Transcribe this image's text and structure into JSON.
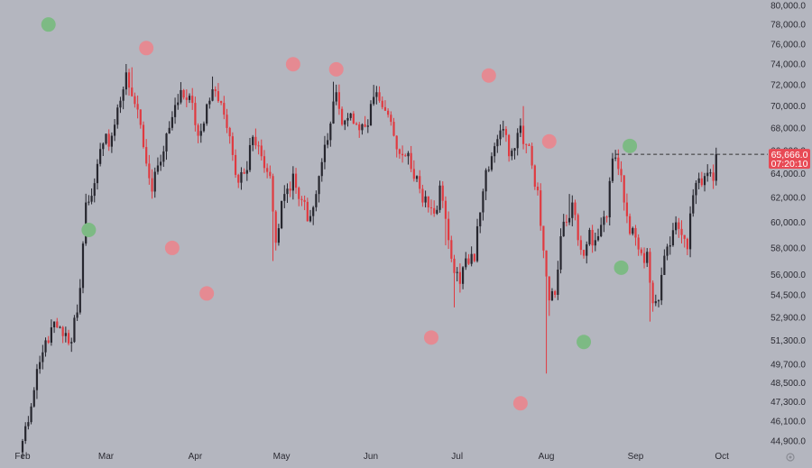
{
  "chart_data": {
    "type": "candlestick",
    "background": "#b4b6bf",
    "colors": {
      "up": "#26262e",
      "down": "#e03a40",
      "marker_bullish": "#7dba84",
      "marker_bearish": "#e58a92",
      "price_tag": "#e84a55",
      "current_line": "#333333"
    },
    "x_tick_labels": [
      {
        "label": "Feb",
        "day": 0
      },
      {
        "label": "Mar",
        "day": 29
      },
      {
        "label": "Apr",
        "day": 60
      },
      {
        "label": "May",
        "day": 90
      },
      {
        "label": "Jun",
        "day": 121
      },
      {
        "label": "Jul",
        "day": 151
      },
      {
        "label": "Aug",
        "day": 182
      },
      {
        "label": "Sep",
        "day": 213
      },
      {
        "label": "Oct",
        "day": 243
      }
    ],
    "y_axis_labels": [
      "80,000.0",
      "78,000.0",
      "76,000.0",
      "74,000.0",
      "72,000.0",
      "70,000.0",
      "68,000.0",
      "66,000.0",
      "64,000.0",
      "62,000.0",
      "60,000.0",
      "58,000.0",
      "56,000.0",
      "54,500.0",
      "52,900.0",
      "51,300.0",
      "49,700.0",
      "48,500.0",
      "47,300.0",
      "46,100.0",
      "44,900.0"
    ],
    "y_scale": "log",
    "y_range": [
      44000,
      80600
    ],
    "current_price": {
      "value": 65666.0,
      "label": "65,666.0",
      "countdown": "07:20:10",
      "line_start_day": 206
    },
    "candle_keypoints": [
      [
        0,
        44900
      ],
      [
        3,
        47000
      ],
      [
        7,
        50500
      ],
      [
        10,
        52200
      ],
      [
        14,
        51600
      ],
      [
        17,
        51200
      ],
      [
        20,
        55000
      ],
      [
        22,
        61600
      ],
      [
        25,
        63200
      ],
      [
        28,
        66600
      ],
      [
        31,
        67300
      ],
      [
        34,
        70500
      ],
      [
        36,
        73200
      ],
      [
        39,
        70200
      ],
      [
        42,
        66300
      ],
      [
        45,
        62500
      ],
      [
        47,
        64700
      ],
      [
        50,
        67500
      ],
      [
        53,
        70100
      ],
      [
        56,
        70800
      ],
      [
        59,
        70300
      ],
      [
        61,
        67300
      ],
      [
        63,
        68400
      ],
      [
        65,
        70500
      ],
      [
        67,
        71400
      ],
      [
        69,
        70300
      ],
      [
        71,
        68000
      ],
      [
        74,
        63900
      ],
      [
        77,
        64000
      ],
      [
        80,
        67200
      ],
      [
        83,
        65500
      ],
      [
        86,
        63800
      ],
      [
        88,
        58400
      ],
      [
        91,
        62300
      ],
      [
        94,
        64000
      ],
      [
        97,
        61800
      ],
      [
        100,
        60500
      ],
      [
        103,
        63800
      ],
      [
        105,
        66500
      ],
      [
        107,
        68400
      ],
      [
        109,
        71300
      ],
      [
        111,
        68300
      ],
      [
        113,
        68900
      ],
      [
        115,
        68400
      ],
      [
        117,
        67800
      ],
      [
        119,
        68100
      ],
      [
        121,
        70200
      ],
      [
        123,
        71300
      ],
      [
        125,
        69900
      ],
      [
        127,
        69200
      ],
      [
        129,
        67300
      ],
      [
        131,
        65700
      ],
      [
        133,
        65500
      ],
      [
        135,
        64400
      ],
      [
        137,
        63800
      ],
      [
        139,
        61600
      ],
      [
        141,
        61200
      ],
      [
        143,
        60700
      ],
      [
        145,
        63000
      ],
      [
        148,
        58600
      ],
      [
        150,
        56100
      ],
      [
        152,
        55300
      ],
      [
        154,
        57200
      ],
      [
        157,
        57000
      ],
      [
        159,
        60800
      ],
      [
        161,
        64300
      ],
      [
        163,
        65500
      ],
      [
        165,
        67000
      ],
      [
        167,
        67900
      ],
      [
        169,
        65500
      ],
      [
        171,
        66200
      ],
      [
        173,
        68200
      ],
      [
        175,
        66500
      ],
      [
        177,
        64700
      ],
      [
        179,
        62600
      ],
      [
        181,
        57800
      ],
      [
        183,
        54100
      ],
      [
        185,
        54500
      ],
      [
        187,
        58900
      ],
      [
        189,
        60000
      ],
      [
        191,
        61600
      ],
      [
        193,
        58600
      ],
      [
        195,
        57400
      ],
      [
        197,
        59400
      ],
      [
        199,
        58600
      ],
      [
        201,
        59800
      ],
      [
        203,
        60400
      ],
      [
        205,
        65300
      ],
      [
        207,
        64400
      ],
      [
        209,
        61600
      ],
      [
        211,
        59100
      ],
      [
        213,
        58800
      ],
      [
        215,
        57600
      ],
      [
        217,
        57700
      ],
      [
        219,
        53900
      ],
      [
        221,
        54100
      ],
      [
        223,
        57400
      ],
      [
        225,
        58200
      ],
      [
        227,
        60000
      ],
      [
        229,
        59000
      ],
      [
        231,
        57900
      ],
      [
        233,
        62200
      ],
      [
        235,
        63600
      ],
      [
        237,
        63800
      ],
      [
        239,
        64100
      ],
      [
        240,
        63400
      ],
      [
        241,
        65666
      ]
    ],
    "extreme_wicks": [
      {
        "day": 22,
        "low": 58400
      },
      {
        "day": 38,
        "high": 73700
      },
      {
        "day": 66,
        "high": 72800
      },
      {
        "day": 87,
        "low": 57000
      },
      {
        "day": 108,
        "high": 72300
      },
      {
        "day": 122,
        "high": 72000
      },
      {
        "day": 147,
        "low": 58200
      },
      {
        "day": 150,
        "low": 53600
      },
      {
        "day": 152,
        "low": 54700
      },
      {
        "day": 174,
        "high": 70000
      },
      {
        "day": 182,
        "low": 49100
      },
      {
        "day": 183,
        "low": 53000
      },
      {
        "day": 190,
        "high": 62300
      },
      {
        "day": 205,
        "high": 65600
      },
      {
        "day": 218,
        "low": 52600
      },
      {
        "day": 241,
        "high": 65700
      }
    ],
    "markers": [
      {
        "type": "bullish",
        "day": 9,
        "price": 78000
      },
      {
        "type": "bearish",
        "day": 43,
        "price": 75600
      },
      {
        "type": "bullish",
        "day": 23,
        "price": 59400
      },
      {
        "type": "bearish",
        "day": 52,
        "price": 58000
      },
      {
        "type": "bearish",
        "day": 64,
        "price": 54600
      },
      {
        "type": "bearish",
        "day": 94,
        "price": 74000
      },
      {
        "type": "bearish",
        "day": 109,
        "price": 73500
      },
      {
        "type": "bearish",
        "day": 142,
        "price": 51500
      },
      {
        "type": "bearish",
        "day": 162,
        "price": 72900
      },
      {
        "type": "bearish",
        "day": 173,
        "price": 47200
      },
      {
        "type": "bearish",
        "day": 183,
        "price": 66800
      },
      {
        "type": "bullish",
        "day": 211,
        "price": 66400
      },
      {
        "type": "bullish",
        "day": 208,
        "price": 56500
      },
      {
        "type": "bullish",
        "day": 195,
        "price": 51200
      }
    ]
  }
}
